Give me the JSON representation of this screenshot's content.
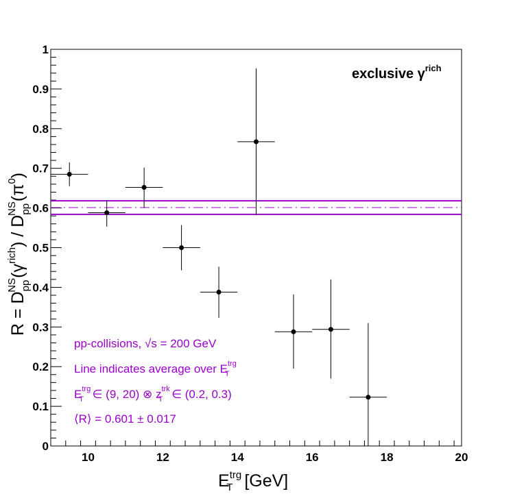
{
  "chart_data": {
    "type": "scatter",
    "title": "",
    "xlabel": {
      "base": "E",
      "sup": "trg",
      "sub": "T",
      "tail": " [GeV]"
    },
    "ylabel": "R = D_pp^NS(γ^rich) / D_pp^NS(π^0)",
    "xlim": [
      9,
      20
    ],
    "ylim": [
      0,
      1
    ],
    "x_ticks": [
      10,
      12,
      14,
      16,
      18,
      20
    ],
    "y_ticks": [
      0,
      0.1,
      0.2,
      0.3,
      0.4,
      0.5,
      0.6,
      0.7,
      0.8,
      0.9,
      1
    ],
    "y_tick_labels": [
      "0",
      "0.1",
      "0.2",
      "0.3",
      "0.4",
      "0.5",
      "0.6",
      "0.7",
      "0.8",
      "0.9",
      "1"
    ],
    "x_tick_labels": [
      "10",
      "12",
      "14",
      "16",
      "18",
      "20"
    ],
    "grid": false,
    "series": [
      {
        "name": "exclusive γ^rich",
        "color": "#000000",
        "points": [
          {
            "x": 9.5,
            "xerr": 0.5,
            "y": 0.685,
            "ylo": 0.655,
            "yhi": 0.715
          },
          {
            "x": 10.5,
            "xerr": 0.5,
            "y": 0.588,
            "ylo": 0.553,
            "yhi": 0.62
          },
          {
            "x": 11.5,
            "xerr": 0.5,
            "y": 0.652,
            "ylo": 0.6,
            "yhi": 0.702
          },
          {
            "x": 12.5,
            "xerr": 0.5,
            "y": 0.5,
            "ylo": 0.443,
            "yhi": 0.557
          },
          {
            "x": 13.5,
            "xerr": 0.5,
            "y": 0.388,
            "ylo": 0.323,
            "yhi": 0.452
          },
          {
            "x": 14.5,
            "xerr": 0.5,
            "y": 0.767,
            "ylo": 0.582,
            "yhi": 0.952
          },
          {
            "x": 15.5,
            "xerr": 0.5,
            "y": 0.288,
            "ylo": 0.195,
            "yhi": 0.382
          },
          {
            "x": 16.5,
            "xerr": 0.5,
            "y": 0.294,
            "ylo": 0.17,
            "yhi": 0.42
          },
          {
            "x": 17.5,
            "xerr": 0.5,
            "y": 0.123,
            "ylo": 0.0,
            "yhi": 0.31
          }
        ]
      }
    ],
    "average": {
      "value": 0.601,
      "error": 0.017,
      "color": "#9900cc"
    },
    "legend": {
      "label": "exclusive γ",
      "sup": "rich",
      "position": "top-right"
    },
    "annotations": {
      "color": "#9900cc",
      "line1": "pp-collisions, √s = 200 GeV",
      "line2": {
        "text": "Line indicates average over E",
        "sup": "trg",
        "sub": "T"
      },
      "line3": {
        "p1": "E",
        "p1sup": "trg",
        "p1sub": "T",
        "p2": " ∈ (9, 20) ⊗ z",
        "p2sup": "trk",
        "p2sub": "T",
        "p3": " ∈ (0.2, 0.3)"
      },
      "line4": "⟨R⟩ = 0.601 ± 0.017"
    }
  }
}
